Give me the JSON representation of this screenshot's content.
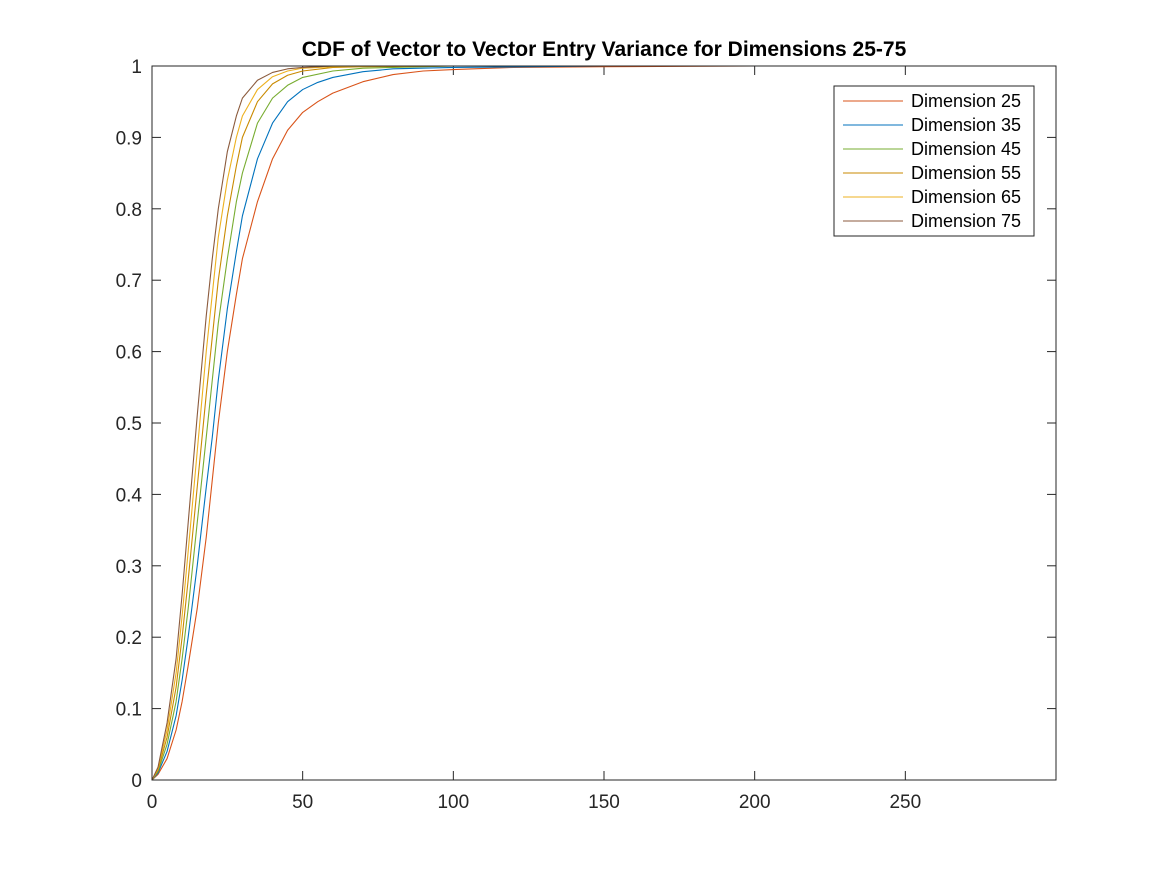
{
  "chart_data": {
    "type": "line",
    "title": "CDF of Vector to Vector Entry Variance for Dimensions 25-75",
    "xlabel": "",
    "ylabel": "",
    "xlim": [
      0,
      300
    ],
    "ylim": [
      0,
      1
    ],
    "x_ticks": [
      0,
      50,
      100,
      150,
      200,
      250
    ],
    "x_tick_labels": [
      "0",
      "50",
      "100",
      "150",
      "200",
      "250"
    ],
    "y_ticks": [
      0,
      0.1,
      0.2,
      0.3,
      0.4,
      0.5,
      0.6,
      0.7,
      0.8,
      0.9,
      1
    ],
    "y_tick_labels": [
      "0",
      "0.1",
      "0.2",
      "0.3",
      "0.4",
      "0.5",
      "0.6",
      "0.7",
      "0.8",
      "0.9",
      "1"
    ],
    "grid": false,
    "legend_position": "top-right",
    "series": [
      {
        "name": "Dimension 25",
        "color": "#d95319",
        "x": [
          0,
          2,
          5,
          8,
          10,
          12,
          15,
          18,
          20,
          22,
          25,
          28,
          30,
          35,
          40,
          45,
          50,
          55,
          60,
          70,
          80,
          90,
          100,
          120,
          150,
          200,
          300
        ],
        "y": [
          0,
          0.008,
          0.03,
          0.07,
          0.11,
          0.16,
          0.24,
          0.34,
          0.42,
          0.5,
          0.6,
          0.68,
          0.73,
          0.81,
          0.87,
          0.91,
          0.935,
          0.95,
          0.962,
          0.978,
          0.988,
          0.993,
          0.995,
          0.998,
          0.999,
          1,
          1
        ]
      },
      {
        "name": "Dimension 35",
        "color": "#0072bd",
        "x": [
          0,
          2,
          5,
          8,
          10,
          12,
          15,
          18,
          20,
          22,
          25,
          28,
          30,
          35,
          40,
          45,
          50,
          55,
          60,
          70,
          80,
          100,
          150,
          300
        ],
        "y": [
          0,
          0.01,
          0.04,
          0.09,
          0.14,
          0.2,
          0.3,
          0.41,
          0.48,
          0.56,
          0.66,
          0.74,
          0.79,
          0.87,
          0.92,
          0.95,
          0.967,
          0.977,
          0.984,
          0.992,
          0.996,
          0.998,
          1,
          1
        ]
      },
      {
        "name": "Dimension 45",
        "color": "#77ac30",
        "x": [
          0,
          2,
          5,
          8,
          10,
          12,
          15,
          18,
          20,
          22,
          25,
          28,
          30,
          35,
          40,
          45,
          50,
          60,
          70,
          80,
          100,
          150,
          300
        ],
        "y": [
          0,
          0.012,
          0.05,
          0.11,
          0.17,
          0.24,
          0.36,
          0.48,
          0.56,
          0.64,
          0.73,
          0.81,
          0.85,
          0.92,
          0.955,
          0.973,
          0.984,
          0.993,
          0.997,
          0.998,
          1,
          1,
          1
        ]
      },
      {
        "name": "Dimension 55",
        "color": "#c98a00",
        "x": [
          0,
          2,
          5,
          8,
          10,
          12,
          15,
          18,
          20,
          22,
          25,
          28,
          30,
          35,
          40,
          45,
          50,
          60,
          70,
          100,
          300
        ],
        "y": [
          0,
          0.014,
          0.06,
          0.13,
          0.2,
          0.28,
          0.41,
          0.54,
          0.62,
          0.7,
          0.79,
          0.86,
          0.9,
          0.95,
          0.975,
          0.987,
          0.993,
          0.998,
          0.999,
          1,
          1
        ]
      },
      {
        "name": "Dimension 65",
        "color": "#edb120",
        "x": [
          0,
          2,
          5,
          8,
          10,
          12,
          15,
          18,
          20,
          22,
          25,
          28,
          30,
          35,
          40,
          45,
          50,
          60,
          80,
          300
        ],
        "y": [
          0,
          0.016,
          0.07,
          0.15,
          0.23,
          0.32,
          0.46,
          0.6,
          0.68,
          0.76,
          0.84,
          0.9,
          0.93,
          0.967,
          0.985,
          0.993,
          0.997,
          0.999,
          1,
          1
        ]
      },
      {
        "name": "Dimension 75",
        "color": "#8b5a3c",
        "x": [
          0,
          2,
          5,
          8,
          10,
          12,
          15,
          18,
          20,
          22,
          25,
          28,
          30,
          35,
          40,
          45,
          50,
          60,
          80,
          300
        ],
        "y": [
          0,
          0.018,
          0.08,
          0.17,
          0.26,
          0.36,
          0.51,
          0.65,
          0.73,
          0.8,
          0.88,
          0.93,
          0.955,
          0.98,
          0.991,
          0.996,
          0.998,
          1,
          1,
          1
        ]
      }
    ]
  }
}
